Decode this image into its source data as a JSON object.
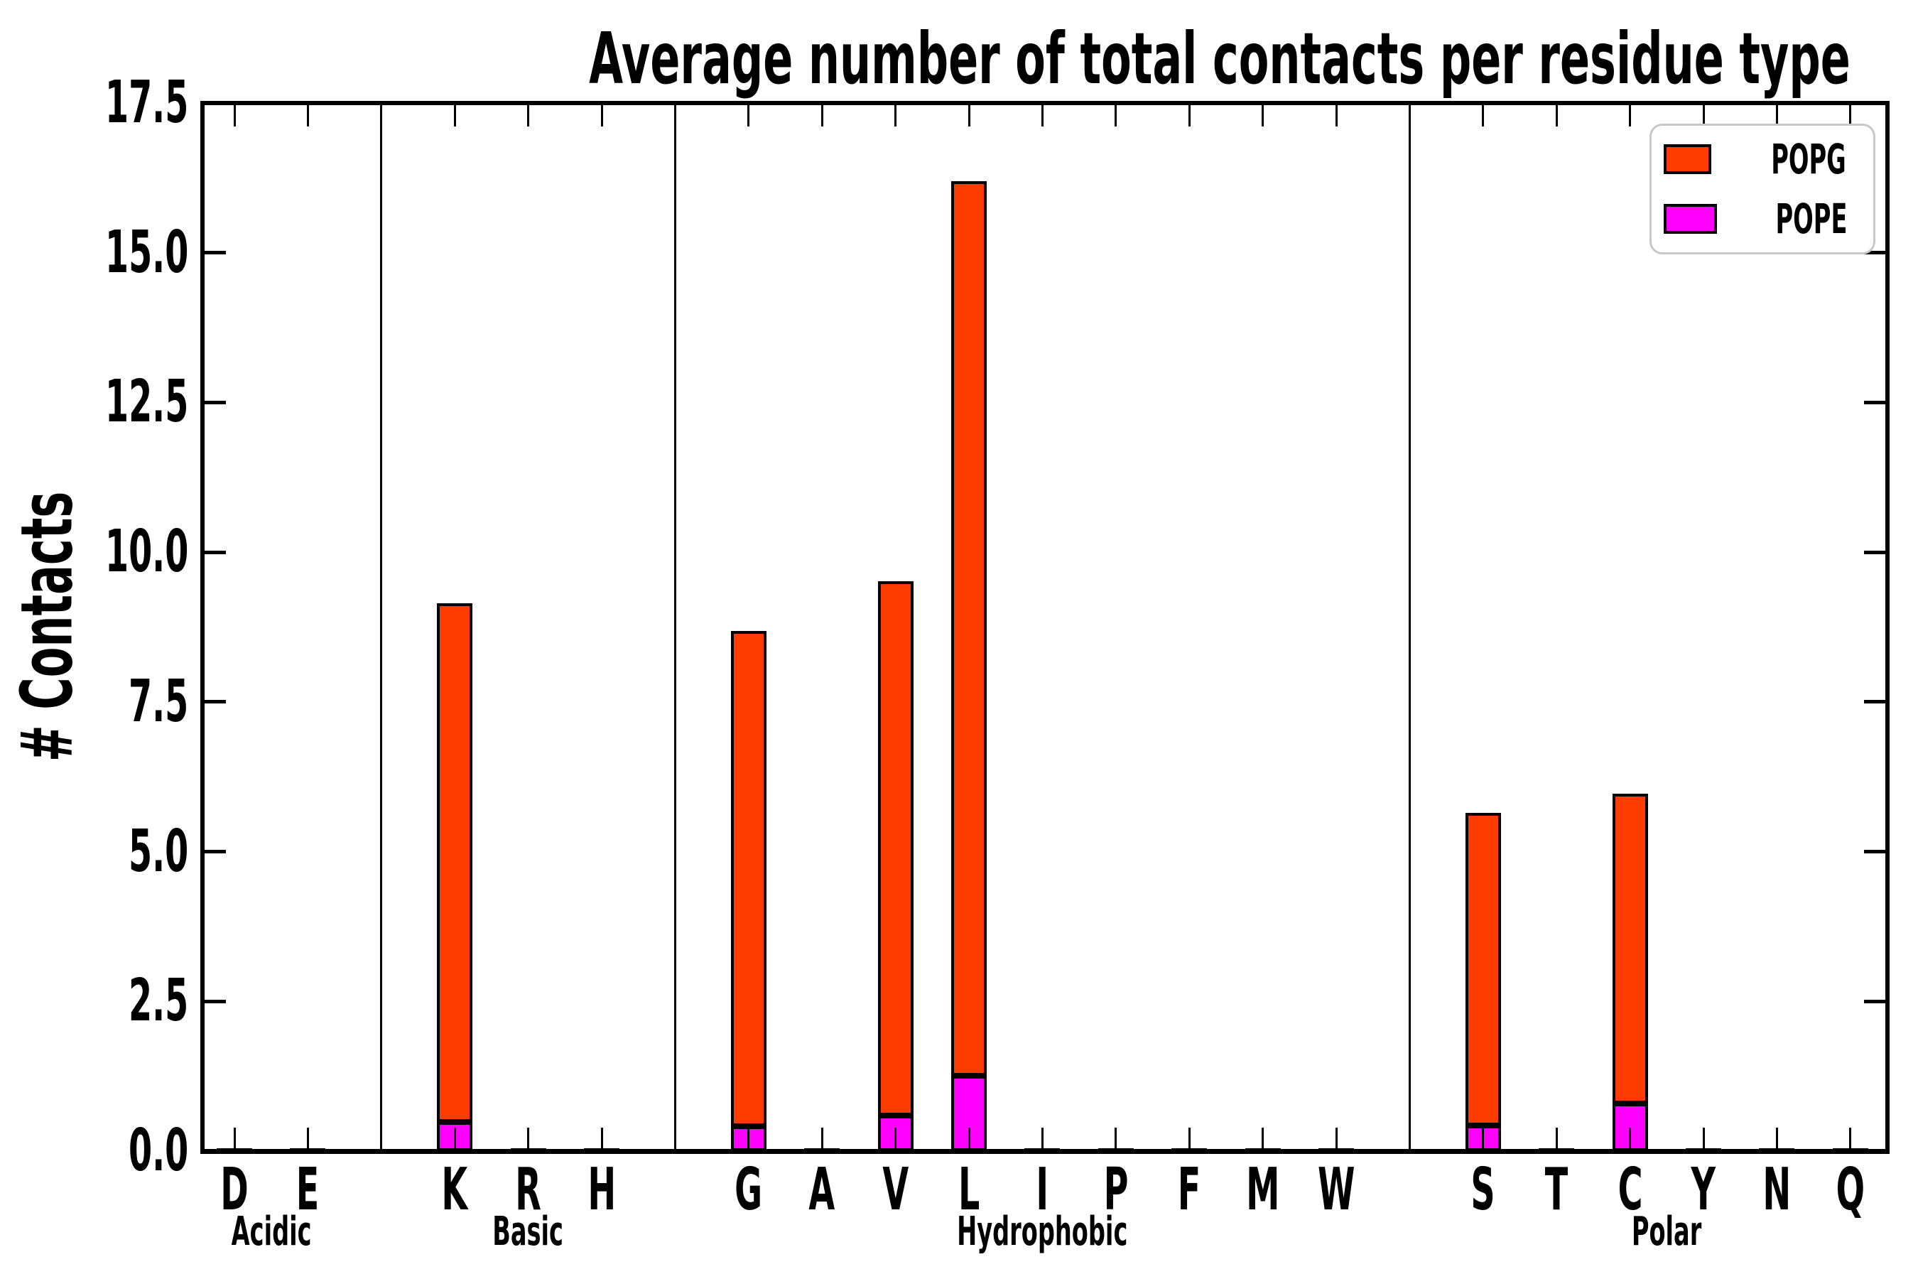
{
  "title": "Average number of total contacts per residue type",
  "ylabel": "# Contacts",
  "legend": {
    "items": [
      {
        "label": "POPG",
        "color": "#ff3c00"
      },
      {
        "label": "POPE",
        "color": "#ff00ff"
      }
    ]
  },
  "colors": {
    "popg": "#ff3c00",
    "pope": "#ff00ff",
    "edge": "#000000",
    "legend_border": "#c8c8c8"
  },
  "y_axis": {
    "ticks": [
      "0.0",
      "2.5",
      "5.0",
      "7.5",
      "10.0",
      "12.5",
      "15.0",
      "17.5"
    ],
    "min": 0.0,
    "max": 17.5,
    "step": 2.5
  },
  "chart_data": {
    "type": "bar",
    "stacked": true,
    "title": "Average number of total contacts per residue type",
    "xlabel": "",
    "ylabel": "# Contacts",
    "ylim": [
      0,
      17.5
    ],
    "grid": false,
    "legend_position": "upper right",
    "groups": [
      {
        "name": "Acidic",
        "categories": [
          "D",
          "E"
        ]
      },
      {
        "name": "Basic",
        "categories": [
          "K",
          "R",
          "H"
        ]
      },
      {
        "name": "Hydrophobic",
        "categories": [
          "G",
          "A",
          "V",
          "L",
          "I",
          "P",
          "F",
          "M",
          "W"
        ]
      },
      {
        "name": "Polar",
        "categories": [
          "S",
          "T",
          "C",
          "Y",
          "N",
          "Q"
        ]
      }
    ],
    "categories": [
      "D",
      "E",
      "K",
      "R",
      "H",
      "G",
      "A",
      "V",
      "L",
      "I",
      "P",
      "F",
      "M",
      "W",
      "S",
      "T",
      "C",
      "Y",
      "N",
      "Q"
    ],
    "series": [
      {
        "name": "POPE",
        "color": "#ff00ff",
        "position": "bottom",
        "values": [
          0.02,
          0.02,
          0.49,
          0.02,
          0.02,
          0.42,
          0.02,
          0.59,
          1.26,
          0.02,
          0.02,
          0.02,
          0.02,
          0.02,
          0.43,
          0.02,
          0.8,
          0.02,
          0.02,
          0.02
        ]
      },
      {
        "name": "POPG",
        "color": "#ff3c00",
        "position": "top",
        "values": [
          0.03,
          0.03,
          8.66,
          0.03,
          0.03,
          8.27,
          0.03,
          8.93,
          14.93,
          0.03,
          0.03,
          0.03,
          0.03,
          0.03,
          5.22,
          0.03,
          5.17,
          0.03,
          0.03,
          0.03
        ]
      }
    ],
    "totals_note": {
      "K": 9.15,
      "G": 8.69,
      "V": 9.52,
      "L": 16.19,
      "S": 5.65,
      "C": 5.97
    }
  }
}
